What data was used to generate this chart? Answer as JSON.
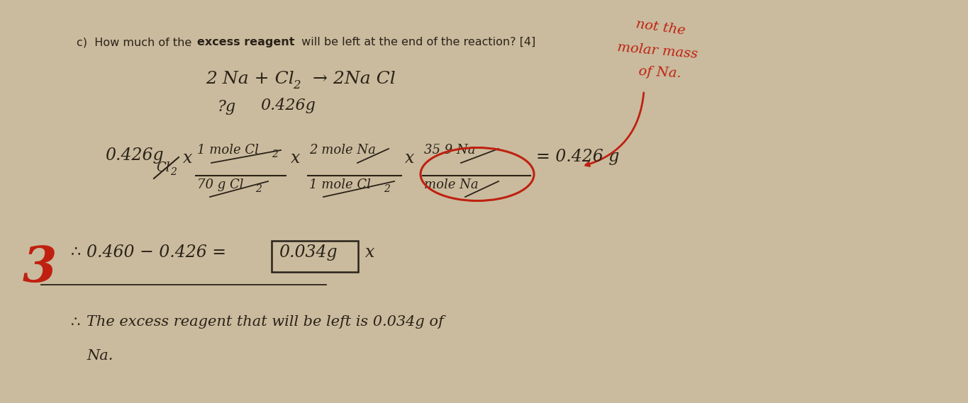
{
  "bg_color": "#cabb9e",
  "fig_width": 13.65,
  "fig_height": 5.69,
  "ink": "#2a2218",
  "red": "#c02010",
  "title_q": "c)  How much of the ",
  "title_bold": "excess reagent",
  "title_rest": " will be left at the end of the reaction? [4]"
}
